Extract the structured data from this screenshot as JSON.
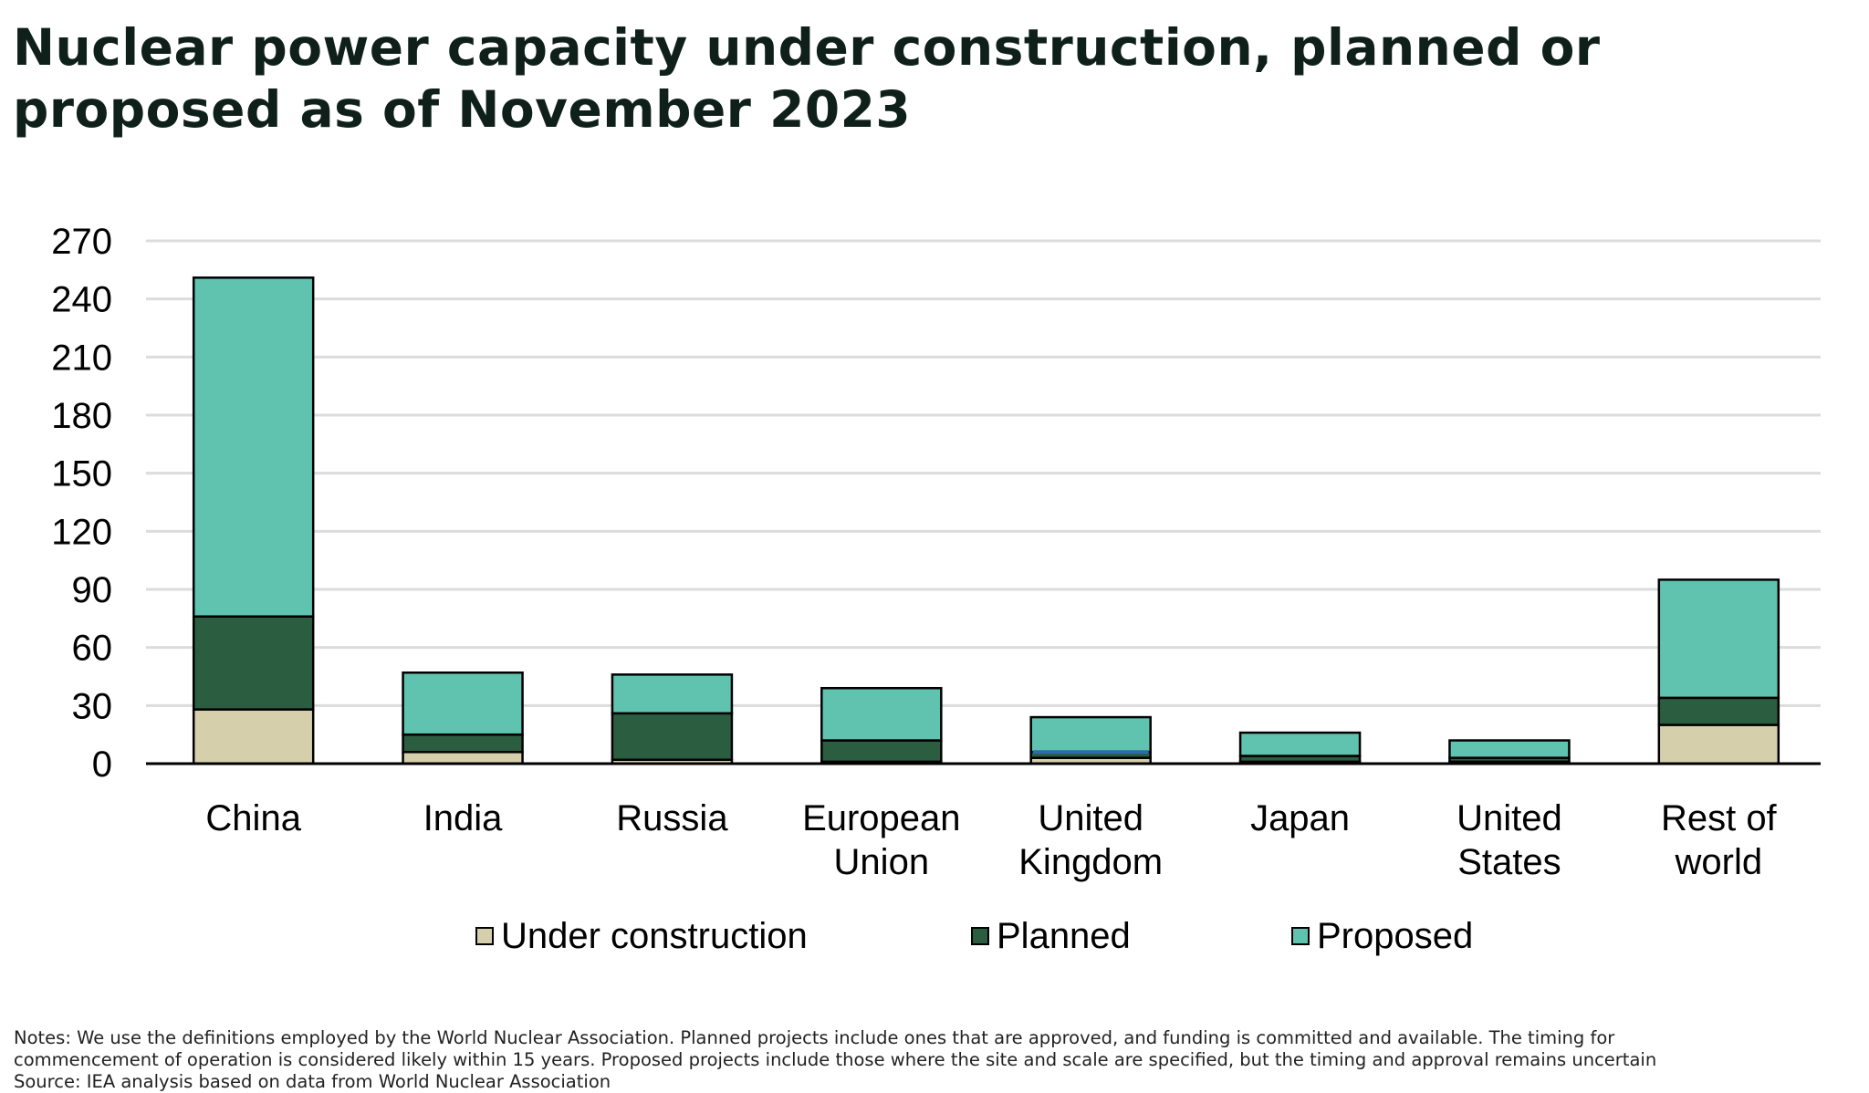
{
  "title": "Nuclear power capacity under construction, planned or proposed as of November 2023",
  "colors": {
    "under_construction": "#d5d0ab",
    "planned": "#2b5d40",
    "proposed": "#5fc3af",
    "united_kingdom_marker": "#2d6ca8",
    "grid": "#dcdcdc",
    "axis": "#000000"
  },
  "legend": {
    "items": [
      {
        "label": "Under construction",
        "color": "#d5d0ab"
      },
      {
        "label": "Planned",
        "color": "#2b5d40"
      },
      {
        "label": "Proposed",
        "color": "#5fc3af"
      }
    ]
  },
  "notes": {
    "line1": "Notes: We use the definitions employed by the World Nuclear Association. Planned projects include ones that are approved, and funding is committed and available. The timing for",
    "line2": "commencement of operation is considered likely within 15 years. Proposed projects include those where the site and scale are specified, but the timing and approval remains uncertain",
    "source": "Source: IEA analysis based on data from World Nuclear Association"
  },
  "chart_data": {
    "type": "bar",
    "stacked": true,
    "categories": [
      [
        "China"
      ],
      [
        "India"
      ],
      [
        "Russia"
      ],
      [
        "European",
        "Union"
      ],
      [
        "United",
        "Kingdom"
      ],
      [
        "Japan"
      ],
      [
        "United",
        "States"
      ],
      [
        "Rest of",
        "world"
      ]
    ],
    "series": [
      {
        "name": "Under construction",
        "color": "#d5d0ab",
        "values": [
          28,
          6,
          2,
          1,
          3,
          1,
          1,
          20
        ]
      },
      {
        "name": "Planned",
        "color": "#2b5d40",
        "values": [
          48,
          9,
          24,
          11,
          3,
          3,
          2,
          14
        ]
      },
      {
        "name": "Proposed",
        "color": "#5fc3af",
        "values": [
          175,
          32,
          20,
          27,
          18,
          12,
          9,
          61
        ]
      }
    ],
    "ylim": [
      0,
      270
    ],
    "yticks": [
      0,
      30,
      60,
      90,
      120,
      150,
      180,
      210,
      240,
      270
    ],
    "grid": true,
    "legend_position": "bottom"
  }
}
